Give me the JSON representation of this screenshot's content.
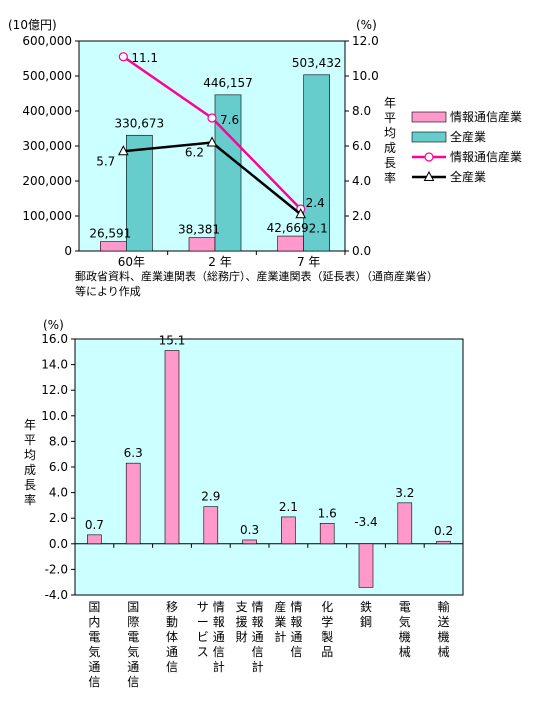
{
  "chart_data": [
    {
      "type": "bar+line",
      "y_left_unit": "(10億円)",
      "y_right_unit": "(%)",
      "y_right_label": [
        "年",
        "平",
        "均",
        "成",
        "長",
        "率"
      ],
      "categories": [
        "60年",
        "2 年",
        "7 年"
      ],
      "ylim_left": [
        0,
        600000
      ],
      "ylim_right": [
        0,
        12
      ],
      "y_left_ticks": [
        "0",
        "100,000",
        "200,000",
        "300,000",
        "400,000",
        "500,000",
        "600,000"
      ],
      "y_right_ticks": [
        "0.0",
        "2.0",
        "4.0",
        "6.0",
        "8.0",
        "10.0",
        "12.0"
      ],
      "bar_series": [
        {
          "name": "情報通信産業",
          "values": [
            26591,
            38381,
            42669
          ],
          "labels": [
            "26,591",
            "38,381",
            "42,669"
          ],
          "color": "#ff99cc"
        },
        {
          "name": "全産業",
          "values": [
            330673,
            446157,
            503432
          ],
          "labels": [
            "330,673",
            "446,157",
            "503,432"
          ],
          "color": "#66cccc"
        }
      ],
      "line_series": [
        {
          "name": "情報通信産業",
          "values": [
            11.1,
            7.6,
            2.4
          ],
          "labels": [
            "11.1",
            "7.6",
            "2.4"
          ],
          "color": "#ff0099",
          "marker": "circle"
        },
        {
          "name": "全産業",
          "values": [
            5.7,
            6.2,
            2.1
          ],
          "labels": [
            "5.7",
            "6.2",
            "2.1"
          ],
          "color": "#000000",
          "marker": "triangle"
        }
      ],
      "plot_bg": "#ccffff",
      "legend_position": "right",
      "source_note": [
        "郵政省資料、産業連関表（総務庁）、産業連関表（延長表）（通商産業省）",
        "等により作成"
      ]
    },
    {
      "type": "bar",
      "y_unit": "(%)",
      "y_label": [
        "年",
        "平",
        "均",
        "成",
        "長",
        "率"
      ],
      "ylim": [
        -4,
        16
      ],
      "y_ticks": [
        "-4.0",
        "-2.0",
        "0.0",
        "2.0",
        "4.0",
        "6.0",
        "8.0",
        "10.0",
        "12.0",
        "14.0",
        "16.0"
      ],
      "categories": [
        "国内電気通信",
        "国際電気通信",
        "移動体通信",
        "情報通信サービス計",
        "情報通信支援財計",
        "情報通信産業計",
        "化学製品",
        "鉄鋼",
        "電気機械",
        "輸送機械"
      ],
      "category_columns": [
        [
          [
            "国",
            "内",
            "電",
            "気",
            "通",
            "信"
          ]
        ],
        [
          [
            "国",
            "際",
            "電",
            "気",
            "通",
            "信"
          ]
        ],
        [
          [
            "移",
            "動",
            "体",
            "通",
            "信"
          ]
        ],
        [
          [
            "サ",
            "ー",
            "ビ",
            "ス"
          ],
          [
            "情",
            "報",
            "通",
            "信",
            "計"
          ]
        ],
        [
          [
            "支",
            "援",
            "財"
          ],
          [
            "情",
            "報",
            "通",
            "信",
            "計"
          ]
        ],
        [
          [
            "産",
            "業",
            "計"
          ],
          [
            "情",
            "報",
            "通",
            "信"
          ]
        ],
        [
          [
            "化",
            "学",
            "製",
            "品"
          ]
        ],
        [
          [
            "鉄",
            "鋼"
          ]
        ],
        [
          [
            "電",
            "気",
            "機",
            "械"
          ]
        ],
        [
          [
            "輸",
            "送",
            "機",
            "械"
          ]
        ]
      ],
      "values": [
        0.7,
        6.3,
        15.1,
        2.9,
        0.3,
        2.1,
        1.6,
        -3.4,
        3.2,
        0.2
      ],
      "labels": [
        "0.7",
        "6.3",
        "15.1",
        "2.9",
        "0.3",
        "2.1",
        "1.6",
        "-3.4",
        "3.2",
        "0.2"
      ],
      "color": "#ff99cc",
      "plot_bg": "#ccffff"
    }
  ]
}
